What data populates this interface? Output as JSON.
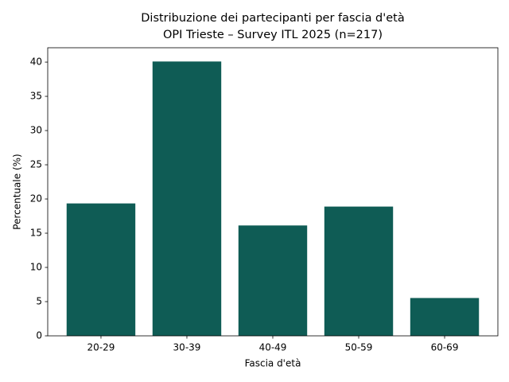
{
  "chart_data": {
    "type": "bar",
    "title": "Distribuzione dei partecipanti per fascia d'età",
    "subtitle": "OPI Trieste – Survey ITL 2025 (n=217)",
    "x_label": "Fascia d'età",
    "y_label": "Percentuale (%)",
    "categories": [
      "20-29",
      "30-39",
      "40-49",
      "50-59",
      "60-69"
    ],
    "values": [
      19.35,
      40.09,
      16.13,
      18.89,
      5.53
    ],
    "color": "#0f5c55",
    "ylim": [
      0,
      42.1
    ],
    "yticks": [
      0,
      5,
      10,
      15,
      20,
      25,
      30,
      35,
      40
    ],
    "grid": false
  }
}
